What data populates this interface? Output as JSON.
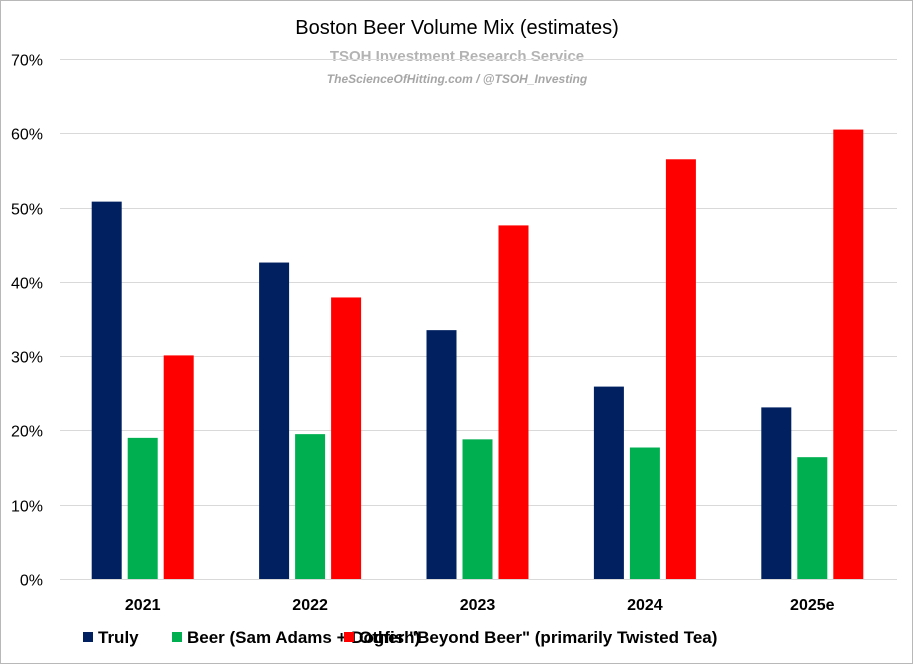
{
  "chart_data": {
    "type": "bar",
    "title": "Boston Beer Volume Mix (estimates)",
    "subtitle": "TSOH Investment Research Service",
    "credit": "TheScienceOfHitting.com / @TSOH_Investing",
    "categories": [
      "2021",
      "2022",
      "2023",
      "2024",
      "2025e"
    ],
    "series": [
      {
        "name": "Truly",
        "color": "#002060",
        "values": [
          0.508,
          0.426,
          0.335,
          0.259,
          0.231
        ]
      },
      {
        "name": "Beer (Sam Adams + Dogfish)",
        "color": "#00b050",
        "values": [
          0.19,
          0.195,
          0.188,
          0.177,
          0.164
        ]
      },
      {
        "name": "Other \"Beyond Beer\" (primarily Twisted Tea)",
        "color": "#ff0000",
        "values": [
          0.301,
          0.379,
          0.476,
          0.565,
          0.605
        ]
      }
    ],
    "ylim": [
      0,
      0.7
    ],
    "yticks": [
      0,
      0.1,
      0.2,
      0.3,
      0.4,
      0.5,
      0.6,
      0.7
    ],
    "ytick_labels": [
      "0%",
      "10%",
      "20%",
      "30%",
      "40%",
      "50%",
      "60%",
      "70%"
    ],
    "xlabel": "",
    "ylabel": "",
    "grid": true,
    "legend_position": "bottom"
  }
}
